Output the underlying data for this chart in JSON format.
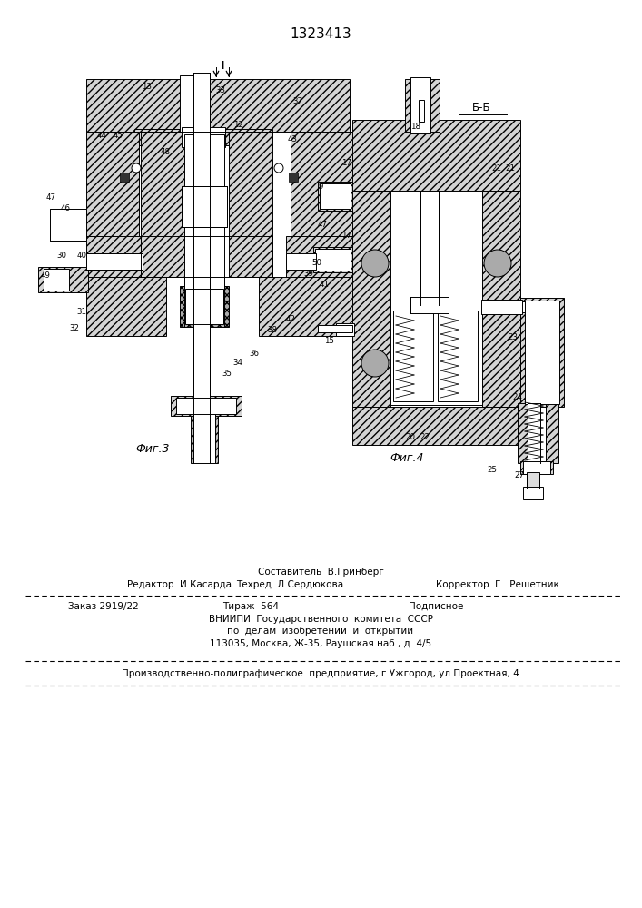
{
  "patent_number": "1323413",
  "bg_color": "#ffffff",
  "fig_width": 7.07,
  "fig_height": 10.0,
  "dpi": 100,
  "footer_sestavitel": "Составитель  В.Гринберг",
  "footer_redaktor": "Редактор  И.Касарда",
  "footer_tekhred": "Техред  Л.Сердюкова",
  "footer_korrektor": "Корректор  Г.  Решетник",
  "footer_zakaz": "Заказ 2919/22",
  "footer_tirazh": "Тираж  564",
  "footer_podpisnoe": "Подписное",
  "footer_vniip1": "ВНИИПИ  Государственного  комитета  СССР",
  "footer_vniip2": "по  делам  изобретений  и  открытий",
  "footer_vniip3": "113035, Москва, Ж-35, Раушская наб., д. 4/5",
  "footer_predpr": "Производственно-полиграфическое  предприятие, г.Ужгород, ул.Проектная, 4",
  "fig3_caption": "Фиг.3",
  "fig4_caption": "Фиг.4",
  "bb_caption": "Б-Б"
}
